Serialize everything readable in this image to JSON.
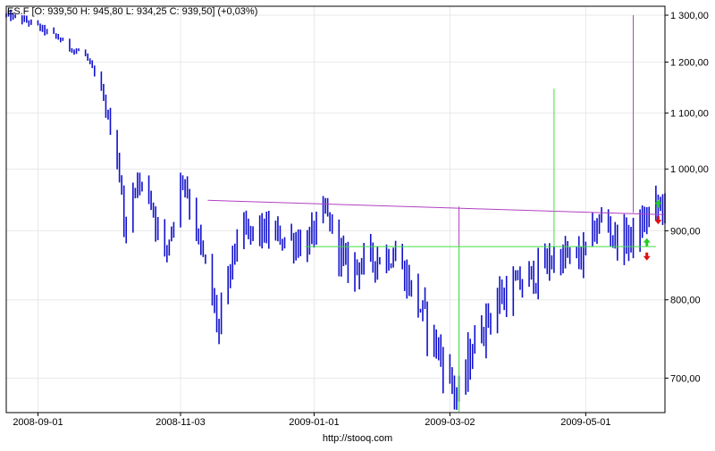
{
  "header": {
    "quote": "ES.F [O: 939,50  H: 945,80  L: 934,25  C: 939,50] (+0,03%)"
  },
  "footer": {
    "source": "http://stooq.com"
  },
  "colors": {
    "candle": "#1010cc",
    "trend_line": "#b040c0",
    "neckline": "#40dd40",
    "target_green": "#30dd30",
    "target_purple": "#b040c0",
    "arrow_up": "#22cc22",
    "arrow_down": "#dd1111",
    "grid": "#e8e8e8",
    "axis": "#000000"
  },
  "chart_data": {
    "type": "candlestick",
    "symbol": "ES.F",
    "x_range": [
      "2008-08-18",
      "2009-06-05"
    ],
    "y_range": [
      660,
      1320
    ],
    "y_scale": "log",
    "grid": true,
    "y_ticks": [
      {
        "value": 700,
        "label": "700,00"
      },
      {
        "value": 800,
        "label": "800,00"
      },
      {
        "value": 900,
        "label": "900,00"
      },
      {
        "value": 1000,
        "label": "1 000,00"
      },
      {
        "value": 1100,
        "label": "1 100,00"
      },
      {
        "value": 1200,
        "label": "1 200,00"
      },
      {
        "value": 1300,
        "label": "1 300,00"
      }
    ],
    "x_ticks": [
      {
        "date": "2008-09-01",
        "label": "2008-09-01"
      },
      {
        "date": "2008-11-03",
        "label": "2008-11-03"
      },
      {
        "date": "2009-01-01",
        "label": "2009-01-01"
      },
      {
        "date": "2009-03-02",
        "label": "2009-03-02"
      },
      {
        "date": "2009-05-01",
        "label": "2009-05-01"
      }
    ],
    "price_path": [
      {
        "date": "2008-08-18",
        "price": 1300
      },
      {
        "date": "2008-08-28",
        "price": 1285
      },
      {
        "date": "2008-09-10",
        "price": 1250
      },
      {
        "date": "2008-09-15",
        "price": 1230
      },
      {
        "date": "2008-09-22",
        "price": 1215
      },
      {
        "date": "2008-09-29",
        "price": 1140
      },
      {
        "date": "2008-10-06",
        "price": 1020
      },
      {
        "date": "2008-10-10",
        "price": 890
      },
      {
        "date": "2008-10-14",
        "price": 980
      },
      {
        "date": "2008-10-20",
        "price": 960
      },
      {
        "date": "2008-10-27",
        "price": 860
      },
      {
        "date": "2008-11-04",
        "price": 990
      },
      {
        "date": "2008-11-12",
        "price": 870
      },
      {
        "date": "2008-11-20",
        "price": 760
      },
      {
        "date": "2008-11-28",
        "price": 890
      },
      {
        "date": "2008-12-08",
        "price": 900
      },
      {
        "date": "2008-12-18",
        "price": 890
      },
      {
        "date": "2008-12-29",
        "price": 880
      },
      {
        "date": "2009-01-06",
        "price": 930
      },
      {
        "date": "2009-01-15",
        "price": 845
      },
      {
        "date": "2009-01-28",
        "price": 860
      },
      {
        "date": "2009-02-06",
        "price": 865
      },
      {
        "date": "2009-02-18",
        "price": 780
      },
      {
        "date": "2009-03-02",
        "price": 700
      },
      {
        "date": "2009-03-06",
        "price": 675
      },
      {
        "date": "2009-03-12",
        "price": 740
      },
      {
        "date": "2009-03-23",
        "price": 800
      },
      {
        "date": "2009-04-06",
        "price": 830
      },
      {
        "date": "2009-04-17",
        "price": 860
      },
      {
        "date": "2009-04-29",
        "price": 860
      },
      {
        "date": "2009-05-08",
        "price": 920
      },
      {
        "date": "2009-05-15",
        "price": 885
      },
      {
        "date": "2009-05-22",
        "price": 890
      },
      {
        "date": "2009-06-01",
        "price": 940
      },
      {
        "date": "2009-06-05",
        "price": 939.5
      }
    ],
    "annotations": [
      {
        "kind": "line",
        "color": "purple",
        "from": {
          "date": "2008-11-15",
          "price": 948
        },
        "to": {
          "date": "2009-06-05",
          "price": 925
        }
      },
      {
        "kind": "line",
        "color": "green",
        "from": {
          "date": "2008-12-28",
          "price": 876
        },
        "to": {
          "date": "2009-06-01",
          "price": 876
        }
      },
      {
        "kind": "line",
        "color": "purple",
        "from": {
          "date": "2009-03-06",
          "price": 657
        },
        "to": {
          "date": "2009-03-06",
          "price": 938
        }
      },
      {
        "kind": "line",
        "color": "green",
        "from": {
          "date": "2009-03-06",
          "price": 657
        },
        "to": {
          "date": "2009-03-06",
          "price": 877
        }
      },
      {
        "kind": "line",
        "color": "green",
        "from": {
          "date": "2009-04-17",
          "price": 877
        },
        "to": {
          "date": "2009-04-17",
          "price": 1147
        }
      },
      {
        "kind": "line",
        "color": "purple",
        "from": {
          "date": "2009-05-22",
          "price": 928
        },
        "to": {
          "date": "2009-05-22",
          "price": 1300
        }
      }
    ],
    "markers": [
      {
        "kind": "arrow-up",
        "date": "2009-06-02",
        "price": 942
      },
      {
        "kind": "arrow-down",
        "date": "2009-06-02",
        "price": 917
      },
      {
        "kind": "arrow-up",
        "date": "2009-05-28",
        "price": 882
      },
      {
        "kind": "arrow-down",
        "date": "2009-05-28",
        "price": 862
      }
    ]
  }
}
